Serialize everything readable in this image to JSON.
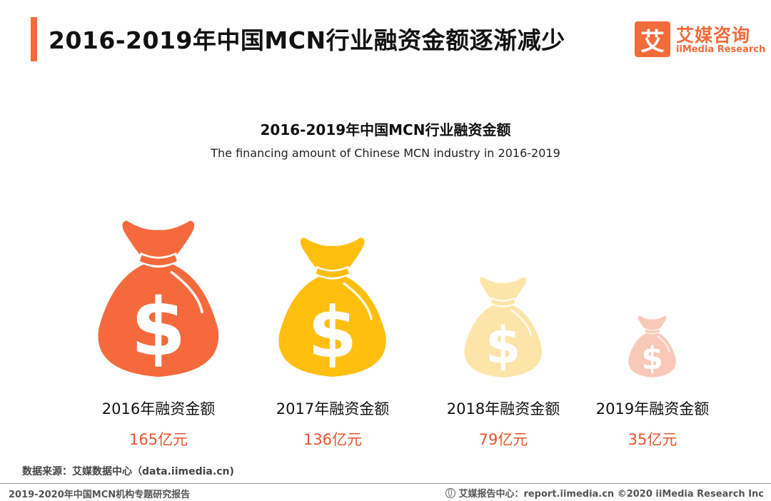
{
  "header": {
    "title": "2016-2019年中国MCN行业融资金额逐渐减少",
    "accent_color": "#f26b3a"
  },
  "logo": {
    "mark": "艾",
    "name_cn": "艾媒咨询",
    "name_en": "iiMedia Research"
  },
  "chart_data": {
    "type": "bar",
    "title": "2016-2019年中国MCN行业融资金额",
    "subtitle": "The financing amount of Chinese MCN industry in 2016-2019",
    "categories": [
      "2016年融资金额",
      "2017年融资金额",
      "2018年融资金额",
      "2019年融资金额"
    ],
    "values": [
      165,
      136,
      79,
      35
    ],
    "value_labels": [
      "165亿元",
      "136亿元",
      "79亿元",
      "35亿元"
    ],
    "colors": [
      "#f56a3c",
      "#ffbf0f",
      "#fde4a8",
      "#f8c9b8"
    ],
    "mark_style": "money-bag-icon"
  },
  "source": "数据来源：艾媒数据中心（data.iimedia.cn)",
  "footer": {
    "left": "2019-2020年中国MCN机构专题研究报告",
    "right": "艾媒报告中心：report.iimedia.cn   ©2020  iiMedia Research  Inc"
  }
}
